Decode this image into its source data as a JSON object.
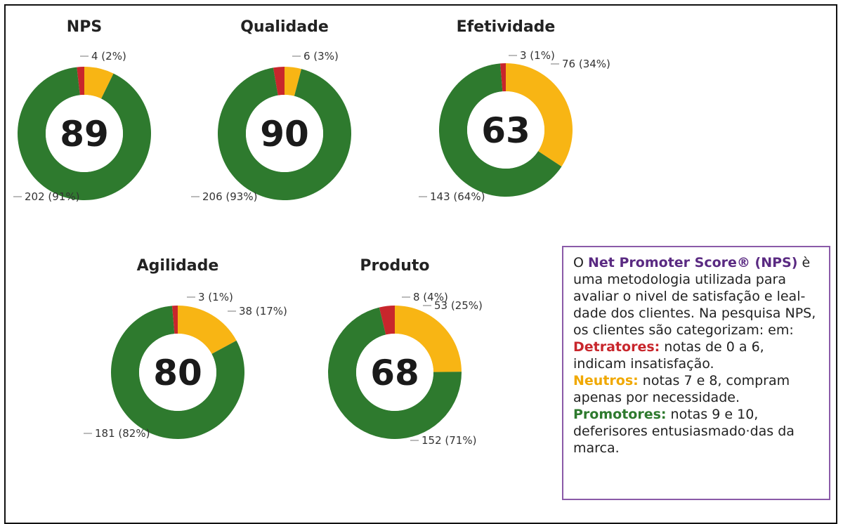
{
  "chart_data": [
    {
      "type": "donut",
      "title": "NPS",
      "score": 89,
      "values": [
        4,
        16,
        202
      ],
      "value_labels": [
        "4 (2%)",
        null,
        "202 (91%)"
      ],
      "colors": [
        "#c8262c",
        "#f8b514",
        "#2e7a2e"
      ]
    },
    {
      "type": "donut",
      "title": "Qualidade",
      "score": 90,
      "values": [
        6,
        9,
        206
      ],
      "value_labels": [
        "6 (3%)",
        null,
        "206 (93%)"
      ],
      "colors": [
        "#c8262c",
        "#f8b514",
        "#2e7a2e"
      ]
    },
    {
      "type": "donut",
      "title": "Efetividade",
      "score": 63,
      "values": [
        3,
        76,
        143
      ],
      "value_labels": [
        "3 (1%)",
        "76 (34%)",
        "143 (64%)"
      ],
      "colors": [
        "#c8262c",
        "#f8b514",
        "#2e7a2e"
      ]
    },
    {
      "type": "donut",
      "title": "Agilidade",
      "score": 80,
      "values": [
        3,
        38,
        181
      ],
      "value_labels": [
        "3 (1%)",
        "38 (17%)",
        "181 (82%)"
      ],
      "colors": [
        "#c8262c",
        "#f8b514",
        "#2e7a2e"
      ]
    },
    {
      "type": "donut",
      "title": "Produto",
      "score": 68,
      "values": [
        8,
        53,
        152
      ],
      "value_labels": [
        "8 (4%)",
        "53 (25%)",
        "152 (71%)"
      ],
      "colors": [
        "#c8262c",
        "#f8b514",
        "#2e7a2e"
      ]
    }
  ],
  "info_box": {
    "intro": "O",
    "brand": "Net Promoter Score® (NPS)",
    "body": "è uma metodologia utilizada para avaliar o nivel de satisfação e leal-dade dos clientes. Na pesquisa NPS, os clientes são categorizam: em:",
    "items": [
      {
        "term": "Detratores:",
        "text": "notas de 0 a 6, indicam insatisfação."
      },
      {
        "term": "Neutros:",
        "text": "notas 7 e 8, compram apenas por necessidade."
      },
      {
        "term": "Promotores:",
        "text": "notas 9 e 10, deferisores entusiasmado·das da marca."
      }
    ]
  }
}
